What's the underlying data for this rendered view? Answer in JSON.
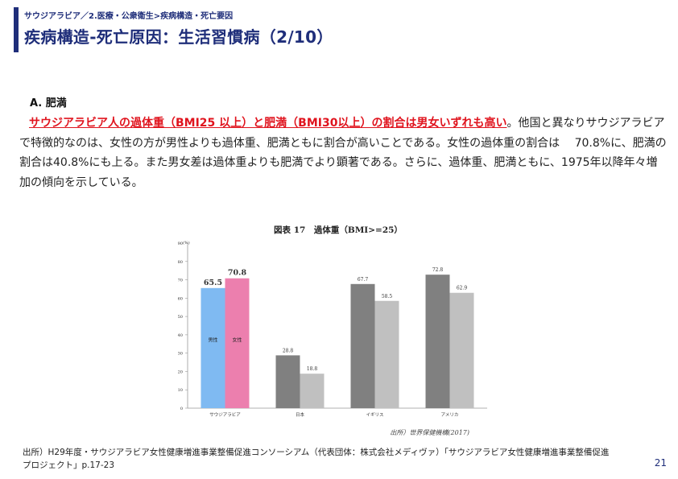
{
  "header": {
    "breadcrumb": "サウジアラビア／2.医療・公衆衛生>疾病構造・死亡要因",
    "title": "疾病構造-死亡原因：生活習慣病（2/10）"
  },
  "section": {
    "heading": "A. 肥満",
    "highlight": "サウジアラビア人の過体重（BMI25 以上）と肥満（BMI30以上）の割合は男女いずれも高い",
    "rest": "。他国と異なりサウジアラビアで特徴的なのは、女性の方が男性よりも過体重、肥満ともに割合が高いことである。女性の過体重の割合は　 70.8%に、肥満の割合は40.8%にも上る。また男女差は過体重よりも肥満でより顕著である。さらに、過体重、肥満ともに、1975年以降年々増加の傾向を示している。"
  },
  "chart_data": {
    "type": "bar",
    "title": "図表 17　過体重（BMI>=25）",
    "unit_label": "(%)",
    "source": "出所）世界保健機構(2017)",
    "categories": [
      "サウジアラビア",
      "日本",
      "イギリス",
      "アメリカ"
    ],
    "ylim": [
      0,
      90
    ],
    "yticks": [
      0,
      10,
      20,
      30,
      40,
      50,
      60,
      70,
      80,
      90
    ],
    "grid": false,
    "legend": "none",
    "series_labels_on_bars": [
      "男性",
      "女性"
    ],
    "series": [
      {
        "values": [
          65.5,
          28.8,
          67.7,
          72.8
        ],
        "labels": [
          "65.5",
          "28.8",
          "67.7",
          "72.8"
        ]
      },
      {
        "values": [
          70.8,
          18.8,
          58.5,
          62.9
        ],
        "labels": [
          "70.8",
          "18.8",
          "58.5",
          "62.9"
        ]
      }
    ],
    "colors": {
      "highlight_male": "#7fbaf2",
      "highlight_female": "#ec7fae",
      "male": "#808080",
      "female": "#c0c0c0"
    }
  },
  "footer": {
    "source_note": "出所）H29年度・サウジアラビア女性健康増進事業整備促進コンソーシアム（代表団体：株式会社メディヴァ）「サウジアラビア女性健康増進事業整備促進プロジェクト」p.17-23",
    "page_number": "21"
  }
}
